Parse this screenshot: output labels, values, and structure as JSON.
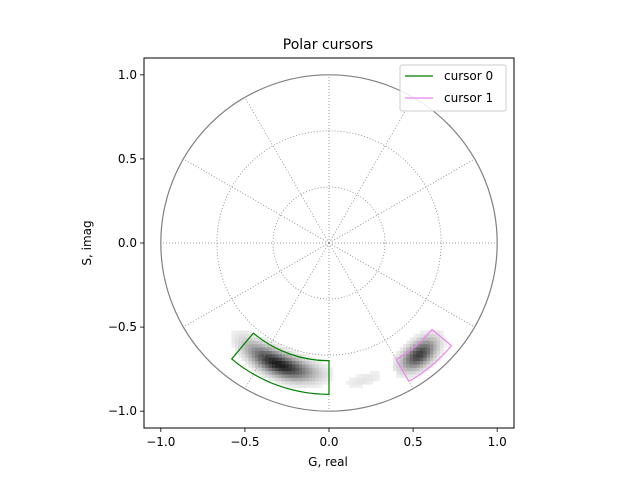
{
  "chart_data": {
    "type": "scatter",
    "title": "Polar cursors",
    "xlabel": "G, real",
    "ylabel": "S, imag",
    "xlim": [
      -1.1,
      1.1
    ],
    "ylim": [
      -1.1,
      1.1
    ],
    "xticks": [
      -1.0,
      -0.5,
      0.0,
      0.5,
      1.0
    ],
    "yticks": [
      -1.0,
      -0.5,
      0.0,
      0.5,
      1.0
    ],
    "xtick_labels": [
      "−1.0",
      "−0.5",
      "0.0",
      "0.5",
      "1.0"
    ],
    "ytick_labels": [
      "−1.0",
      "−0.5",
      "0.0",
      "0.5",
      "1.0"
    ],
    "legend_position": "top-right",
    "polar_grid": {
      "unit_circle": {
        "radius": 1.0,
        "color": "#808080"
      },
      "rings": [
        0.333,
        0.667
      ],
      "spoke_angles_deg": [
        0,
        30,
        60,
        90,
        120,
        150,
        180,
        210,
        240,
        270,
        300,
        330
      ]
    },
    "cursors": [
      {
        "name": "cursor 0",
        "color": "#008000",
        "phase_deg": [
          -130,
          -90
        ],
        "modulation": [
          0.7,
          0.9
        ]
      },
      {
        "name": "cursor 1",
        "color": "#ee82ee",
        "phase_deg": [
          -60,
          -40
        ],
        "modulation": [
          0.8,
          0.95
        ]
      }
    ],
    "histogram_clusters": [
      {
        "center": [
          -0.24,
          -0.74
        ],
        "phase_deg": [
          -140,
          -88
        ],
        "modulation": [
          0.66,
          0.9
        ],
        "peak_density": 1.0
      },
      {
        "center": [
          0.52,
          -0.78
        ],
        "phase_deg": [
          -63,
          -38
        ],
        "modulation": [
          0.73,
          0.97
        ],
        "peak_density": 0.9
      },
      {
        "center": [
          0.1,
          -0.8
        ],
        "phase_deg": [
          -90,
          -60
        ],
        "modulation": [
          0.76,
          0.92
        ],
        "peak_density": 0.12
      }
    ]
  }
}
